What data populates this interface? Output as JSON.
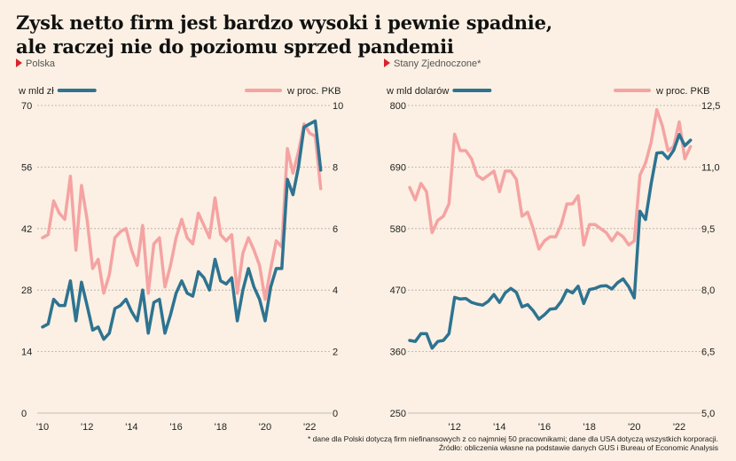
{
  "title_line1": "Zysk netto firm jest bardzo wysoki i pewnie spadnie,",
  "title_line2": "ale raczej nie do poziomu sprzed pandemii",
  "footnote": "* dane dla Polski dotyczą firm niefinansowych z co najmniej 50 pracownikami; dane dla USA dotyczą wszystkich korporacji.",
  "source": "Źródło: obliczenia własne na podstawie danych GUS i Bureau of Economic Analysis",
  "colors": {
    "left_series": "#2e7391",
    "right_series": "#f5a3a3",
    "marker": "#d9232a",
    "grid": "#b3aaa0"
  },
  "chart_data": [
    {
      "type": "line",
      "title": "Polska",
      "legend_left": "w mld zł",
      "legend_right": "w proc. PKB",
      "x_ticks": [
        "'10",
        "'12",
        "'14",
        "'16",
        "'18",
        "'20",
        "'22"
      ],
      "x_tick_years": [
        2010,
        2012,
        2014,
        2016,
        2018,
        2020,
        2022
      ],
      "xlim": [
        2010,
        2022.75
      ],
      "y_left_ticks": [
        "0",
        "14",
        "28",
        "42",
        "56",
        "70"
      ],
      "ylim_left": [
        0,
        70
      ],
      "y_right_ticks": [
        "0",
        "2",
        "4",
        "6",
        "8",
        "10"
      ],
      "ylim_right": [
        0,
        10
      ],
      "x": [
        2010,
        2010.25,
        2010.5,
        2010.75,
        2011,
        2011.25,
        2011.5,
        2011.75,
        2012,
        2012.25,
        2012.5,
        2012.75,
        2013,
        2013.25,
        2013.5,
        2013.75,
        2014,
        2014.25,
        2014.5,
        2014.75,
        2015,
        2015.25,
        2015.5,
        2015.75,
        2016,
        2016.25,
        2016.5,
        2016.75,
        2017,
        2017.25,
        2017.5,
        2017.75,
        2018,
        2018.25,
        2018.5,
        2018.75,
        2019,
        2019.25,
        2019.5,
        2019.75,
        2020,
        2020.25,
        2020.5,
        2020.75,
        2021,
        2021.25,
        2021.5,
        2021.75,
        2022,
        2022.25,
        2022.5
      ],
      "series": [
        {
          "name": "w mld zł",
          "axis": "left",
          "values": [
            19.6,
            20.3,
            25.9,
            24.5,
            24.5,
            30.1,
            21.0,
            29.8,
            24.5,
            18.9,
            19.6,
            16.8,
            18.2,
            23.8,
            24.5,
            25.9,
            23.1,
            21.0,
            28.0,
            18.2,
            25.2,
            25.9,
            18.2,
            22.4,
            27.3,
            30.1,
            27.3,
            26.6,
            32.2,
            30.8,
            28.0,
            35.0,
            30.1,
            29.4,
            30.8,
            21.0,
            28.0,
            32.9,
            28.7,
            25.9,
            21.0,
            28.7,
            32.9,
            32.9,
            53.2,
            49.7,
            56.0,
            65.1,
            65.8,
            66.5,
            55.3
          ]
        },
        {
          "name": "w proc. PKB",
          "axis": "right",
          "values": [
            5.7,
            5.8,
            6.9,
            6.5,
            6.3,
            7.7,
            5.3,
            7.4,
            6.3,
            4.7,
            5.0,
            3.9,
            4.5,
            5.7,
            5.9,
            6.0,
            5.3,
            4.8,
            6.1,
            3.9,
            5.5,
            5.7,
            4.1,
            4.8,
            5.7,
            6.3,
            5.7,
            5.5,
            6.5,
            6.1,
            5.7,
            7.0,
            5.8,
            5.6,
            5.8,
            3.9,
            5.2,
            5.7,
            5.3,
            4.8,
            3.7,
            4.7,
            5.6,
            5.4,
            8.6,
            7.8,
            8.5,
            9.4,
            9.1,
            9.0,
            7.3
          ]
        }
      ]
    },
    {
      "type": "line",
      "title": "Stany Zjednoczone*",
      "legend_left": "w mld dolarów",
      "legend_right": "w proc. PKB",
      "x_ticks": [
        "'12",
        "'14",
        "'16",
        "'18",
        "'20",
        "'22"
      ],
      "x_tick_years": [
        2012,
        2014,
        2016,
        2018,
        2020,
        2022
      ],
      "xlim": [
        2010,
        2022.75
      ],
      "y_left_ticks": [
        "250",
        "360",
        "470",
        "580",
        "690",
        "800"
      ],
      "ylim_left": [
        250,
        800
      ],
      "y_right_ticks": [
        "5,0",
        "6,5",
        "8,0",
        "9,5",
        "11,0",
        "12,5"
      ],
      "ylim_right": [
        5.0,
        12.5
      ],
      "x": [
        2010,
        2010.25,
        2010.5,
        2010.75,
        2011,
        2011.25,
        2011.5,
        2011.75,
        2012,
        2012.25,
        2012.5,
        2012.75,
        2013,
        2013.25,
        2013.5,
        2013.75,
        2014,
        2014.25,
        2014.5,
        2014.75,
        2015,
        2015.25,
        2015.5,
        2015.75,
        2016,
        2016.25,
        2016.5,
        2016.75,
        2017,
        2017.25,
        2017.5,
        2017.75,
        2018,
        2018.25,
        2018.5,
        2018.75,
        2019,
        2019.25,
        2019.5,
        2019.75,
        2020,
        2020.25,
        2020.5,
        2020.75,
        2021,
        2021.25,
        2021.5,
        2021.75,
        2022,
        2022.25,
        2022.5
      ],
      "series": [
        {
          "name": "w mld dolarów",
          "axis": "left",
          "values": [
            380,
            378,
            392,
            392,
            366,
            378,
            380,
            392,
            457,
            454,
            455,
            448,
            445,
            443,
            450,
            462,
            448,
            465,
            473,
            466,
            440,
            444,
            433,
            418,
            426,
            436,
            437,
            450,
            470,
            465,
            477,
            446,
            471,
            473,
            477,
            478,
            472,
            483,
            490,
            476,
            456,
            611,
            596,
            660,
            715,
            716,
            705,
            720,
            748,
            728,
            738
          ]
        },
        {
          "name": "w proc. PKB",
          "axis": "right",
          "values": [
            10.5,
            10.2,
            10.6,
            10.4,
            9.4,
            9.7,
            9.8,
            10.1,
            11.8,
            11.4,
            11.4,
            11.2,
            10.8,
            10.7,
            10.8,
            10.9,
            10.4,
            10.9,
            10.9,
            10.7,
            9.8,
            9.9,
            9.5,
            9.0,
            9.2,
            9.3,
            9.3,
            9.6,
            10.1,
            10.1,
            10.3,
            9.1,
            9.6,
            9.6,
            9.5,
            9.4,
            9.2,
            9.4,
            9.3,
            9.1,
            9.2,
            10.8,
            11.1,
            11.6,
            12.4,
            12.0,
            11.4,
            11.5,
            12.1,
            11.2,
            11.5
          ]
        }
      ]
    }
  ]
}
